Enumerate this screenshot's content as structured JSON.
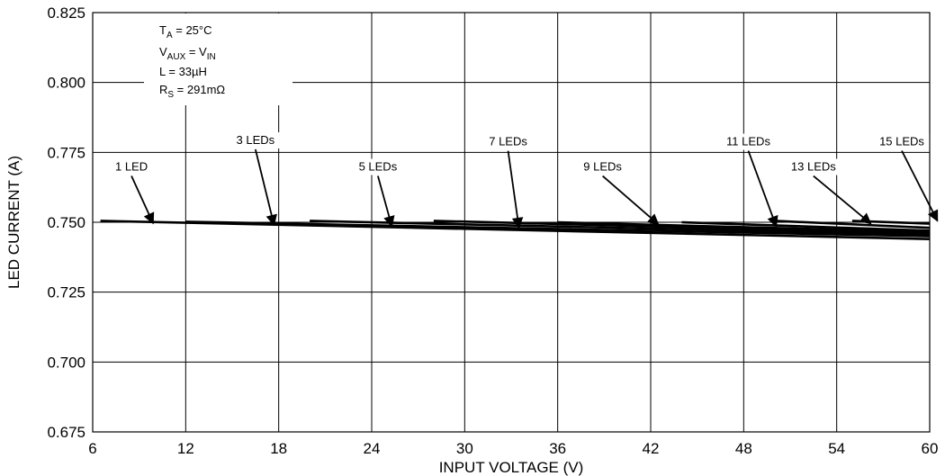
{
  "chart_data": {
    "type": "line",
    "xlabel": "INPUT VOLTAGE (V)",
    "ylabel": "LED CURRENT (A)",
    "xlim": [
      6,
      60
    ],
    "ylim": [
      0.675,
      0.825
    ],
    "xticks": [
      6,
      12,
      18,
      24,
      30,
      36,
      42,
      48,
      54,
      60
    ],
    "yticks": [
      0.675,
      0.7,
      0.725,
      0.75,
      0.775,
      0.8,
      0.825
    ],
    "x_tick_labels": [
      "6",
      "12",
      "18",
      "24",
      "30",
      "36",
      "42",
      "48",
      "54",
      "60"
    ],
    "y_tick_labels": [
      "0.675",
      "0.700",
      "0.725",
      "0.750",
      "0.775",
      "0.800",
      "0.825"
    ],
    "grid": true,
    "conditions": {
      "ta": {
        "main": "T",
        "sub": "A",
        "rest": " = 25°C"
      },
      "vaux": {
        "main": "V",
        "sub": "AUX",
        "mid": " = V",
        "sub2": "IN"
      },
      "l": "L = 33µH",
      "rs": {
        "main": "R",
        "sub": "S",
        "rest": " = 291mΩ"
      }
    },
    "series": [
      {
        "name": "1 LED",
        "x": [
          6.5,
          60
        ],
        "y": [
          0.7505,
          0.744
        ],
        "label_at": [
          8.5,
          0.7685
        ],
        "arrow_to": [
          9.9,
          0.7496
        ]
      },
      {
        "name": "3 LEDs",
        "x": [
          12,
          60
        ],
        "y": [
          0.7502,
          0.745
        ],
        "label_at": [
          16.5,
          0.778
        ],
        "arrow_to": [
          17.7,
          0.749
        ]
      },
      {
        "name": "5 LEDs",
        "x": [
          20,
          60
        ],
        "y": [
          0.7505,
          0.7455
        ],
        "label_at": [
          24.4,
          0.7685
        ],
        "arrow_to": [
          25.3,
          0.7485
        ]
      },
      {
        "name": "7 LEDs",
        "x": [
          28,
          60
        ],
        "y": [
          0.7505,
          0.746
        ],
        "label_at": [
          32.8,
          0.7775
        ],
        "arrow_to": [
          33.5,
          0.748
        ]
      },
      {
        "name": "9 LEDs",
        "x": [
          36,
          60
        ],
        "y": [
          0.75,
          0.7465
        ],
        "label_at": [
          38.9,
          0.7685
        ],
        "arrow_to": [
          42.5,
          0.7492
        ]
      },
      {
        "name": "11 LEDs",
        "x": [
          44,
          60
        ],
        "y": [
          0.75,
          0.747
        ],
        "label_at": [
          48.3,
          0.7775
        ],
        "arrow_to": [
          50.1,
          0.7485
        ]
      },
      {
        "name": "13 LEDs",
        "x": [
          50,
          60
        ],
        "y": [
          0.7505,
          0.748
        ],
        "label_at": [
          52.5,
          0.7685
        ],
        "arrow_to": [
          56.2,
          0.7495
        ]
      },
      {
        "name": "15 LEDs",
        "x": [
          55,
          60
        ],
        "y": [
          0.7505,
          0.7495
        ],
        "label_at": [
          58.2,
          0.7775
        ],
        "arrow_to": [
          60.5,
          0.7505
        ]
      }
    ]
  }
}
